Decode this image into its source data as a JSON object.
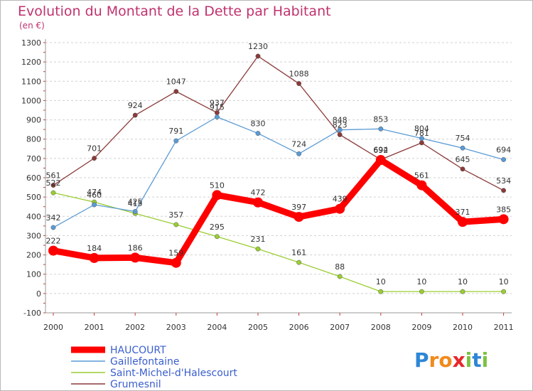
{
  "chart_data": {
    "type": "line",
    "title": "Evolution du Montant de la Dette par Habitant",
    "subtitle": "(en €)",
    "x": [
      "2000",
      "2001",
      "2002",
      "2003",
      "2004",
      "2005",
      "2006",
      "2007",
      "2008",
      "2009",
      "2010",
      "2011"
    ],
    "ylim": [
      -100,
      1300
    ],
    "yticks": [
      -100,
      0,
      100,
      200,
      300,
      400,
      500,
      600,
      700,
      800,
      900,
      1000,
      1100,
      1200,
      1300
    ],
    "grid": "horizontal dashed",
    "legend_position": "bottom-left",
    "series": [
      {
        "name": "HAUCOURT",
        "color": "#ff0000",
        "values": [
          222,
          184,
          186,
          159,
          510,
          472,
          397,
          439,
          692,
          561,
          371,
          385
        ],
        "labels": [
          "222",
          "184",
          "186",
          "159",
          "510",
          "472",
          "397",
          "439",
          "692",
          "561",
          "371",
          "385"
        ]
      },
      {
        "name": "Gaillefontaine",
        "color": "#5b9bd5",
        "values": [
          342,
          460,
          425,
          791,
          915,
          830,
          724,
          848,
          853,
          804,
          754,
          694
        ],
        "labels": [
          "342",
          "460",
          "425",
          "791",
          "915",
          "830",
          "724",
          "848",
          "853",
          "804",
          "754",
          "694"
        ]
      },
      {
        "name": "Saint-Michel-d'Halescourt",
        "color": "#9acd32",
        "values": [
          522,
          474,
          415,
          357,
          295,
          231,
          161,
          88,
          10,
          10,
          10,
          10
        ],
        "labels": [
          "522",
          "474",
          "415",
          "357",
          "295",
          "231",
          "161",
          "88",
          "10",
          "10",
          "10",
          "10"
        ]
      },
      {
        "name": "Grumesnil",
        "color": "#8b3a3a",
        "values": [
          561,
          701,
          924,
          1047,
          937,
          1230,
          1088,
          823,
          694,
          781,
          645,
          534
        ],
        "labels": [
          "561",
          "701",
          "924",
          "1047",
          "937",
          "1230",
          "1088",
          "823",
          "694",
          "781",
          "645",
          "534"
        ]
      }
    ]
  },
  "logo": {
    "letters": [
      "P",
      "r",
      "o",
      "x",
      "i",
      "t",
      "i"
    ],
    "colors": [
      "#2e86d6",
      "#f08a1c",
      "#f08a1c",
      "#e8262a",
      "#7cc242",
      "#2e86d6",
      "#7cc242"
    ]
  }
}
